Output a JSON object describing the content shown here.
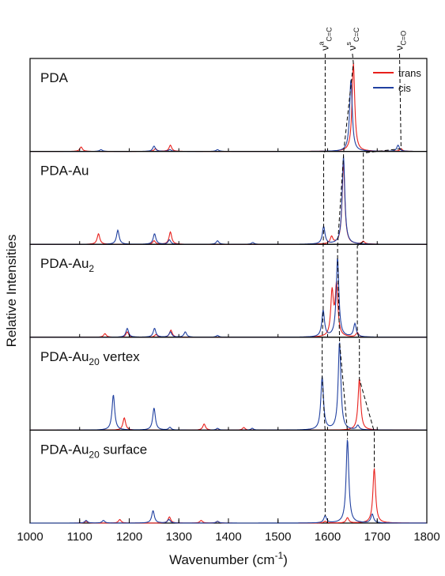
{
  "chart_data": {
    "type": "line",
    "xlabel": "Wavenumber (cm",
    "xlabel_sup": "-1",
    "xlabel_close": ")",
    "ylabel": "Relative Intensities",
    "xlim": [
      1000,
      1800
    ],
    "xticks": [
      "1000",
      "1100",
      "1200",
      "1300",
      "1400",
      "1500",
      "1600",
      "1700",
      "1800"
    ],
    "legend": [
      {
        "name": "trans",
        "color": "#e8201c"
      },
      {
        "name": "cis",
        "color": "#2040a0"
      }
    ],
    "annotations": [
      {
        "main": "ν",
        "sup": "a",
        "sub": "C=C",
        "x": 1595
      },
      {
        "main": "ν",
        "sup": "s",
        "sub": "C=C",
        "x": 1650
      },
      {
        "main": "ν",
        "sup": "",
        "sub": "C=O",
        "x": 1745
      }
    ],
    "panels": [
      {
        "label": "PDA",
        "label_sub": "",
        "label_suffix": "",
        "trans": [
          [
            1103,
            0.05
          ],
          [
            1253,
            0.03
          ],
          [
            1283,
            0.07
          ],
          [
            1652,
            1.0
          ],
          [
            1748,
            0.03
          ]
        ],
        "cis": [
          [
            1143,
            0.02
          ],
          [
            1250,
            0.06
          ],
          [
            1282,
            0.02
          ],
          [
            1378,
            0.02
          ],
          [
            1647,
            0.82
          ],
          [
            1742,
            0.07
          ]
        ]
      },
      {
        "label": "PDA-Au",
        "label_sub": "",
        "label_suffix": "",
        "trans": [
          [
            1138,
            0.12
          ],
          [
            1250,
            0.04
          ],
          [
            1283,
            0.14
          ],
          [
            1608,
            0.08
          ],
          [
            1632,
            0.92
          ],
          [
            1672,
            0.03
          ]
        ],
        "cis": [
          [
            1177,
            0.16
          ],
          [
            1251,
            0.12
          ],
          [
            1281,
            0.05
          ],
          [
            1378,
            0.04
          ],
          [
            1449,
            0.02
          ],
          [
            1592,
            0.2
          ],
          [
            1632,
            1.0
          ]
        ]
      },
      {
        "label": "PDA-Au",
        "label_sub": "2",
        "label_suffix": "",
        "trans": [
          [
            1151,
            0.04
          ],
          [
            1196,
            0.06
          ],
          [
            1254,
            0.03
          ],
          [
            1284,
            0.08
          ],
          [
            1609,
            0.5
          ],
          [
            1618,
            0.58
          ],
          [
            1660,
            0.05
          ]
        ],
        "cis": [
          [
            1196,
            0.1
          ],
          [
            1251,
            0.1
          ],
          [
            1283,
            0.06
          ],
          [
            1313,
            0.06
          ],
          [
            1378,
            0.02
          ],
          [
            1591,
            0.3
          ],
          [
            1620,
            0.9
          ],
          [
            1655,
            0.15
          ]
        ]
      },
      {
        "label": "PDA-Au",
        "label_sub": "20",
        "label_suffix": " vertex",
        "trans": [
          [
            1190,
            0.14
          ],
          [
            1351,
            0.07
          ],
          [
            1431,
            0.03
          ],
          [
            1664,
            0.58
          ]
        ],
        "cis": [
          [
            1168,
            0.4
          ],
          [
            1250,
            0.25
          ],
          [
            1282,
            0.03
          ],
          [
            1378,
            0.02
          ],
          [
            1448,
            0.02
          ],
          [
            1589,
            0.6
          ],
          [
            1624,
            1.0
          ],
          [
            1661,
            0.05
          ]
        ]
      },
      {
        "label": "PDA-Au",
        "label_sub": "20",
        "label_suffix": " surface",
        "trans": [
          [
            1113,
            0.02
          ],
          [
            1181,
            0.04
          ],
          [
            1281,
            0.07
          ],
          [
            1345,
            0.03
          ],
          [
            1378,
            0.02
          ],
          [
            1595,
            0.02
          ],
          [
            1640,
            0.06
          ],
          [
            1694,
            0.62
          ]
        ],
        "cis": [
          [
            1113,
            0.03
          ],
          [
            1148,
            0.03
          ],
          [
            1248,
            0.14
          ],
          [
            1280,
            0.04
          ],
          [
            1378,
            0.02
          ],
          [
            1595,
            0.08
          ],
          [
            1640,
            0.95
          ],
          [
            1690,
            0.1
          ]
        ]
      }
    ]
  }
}
